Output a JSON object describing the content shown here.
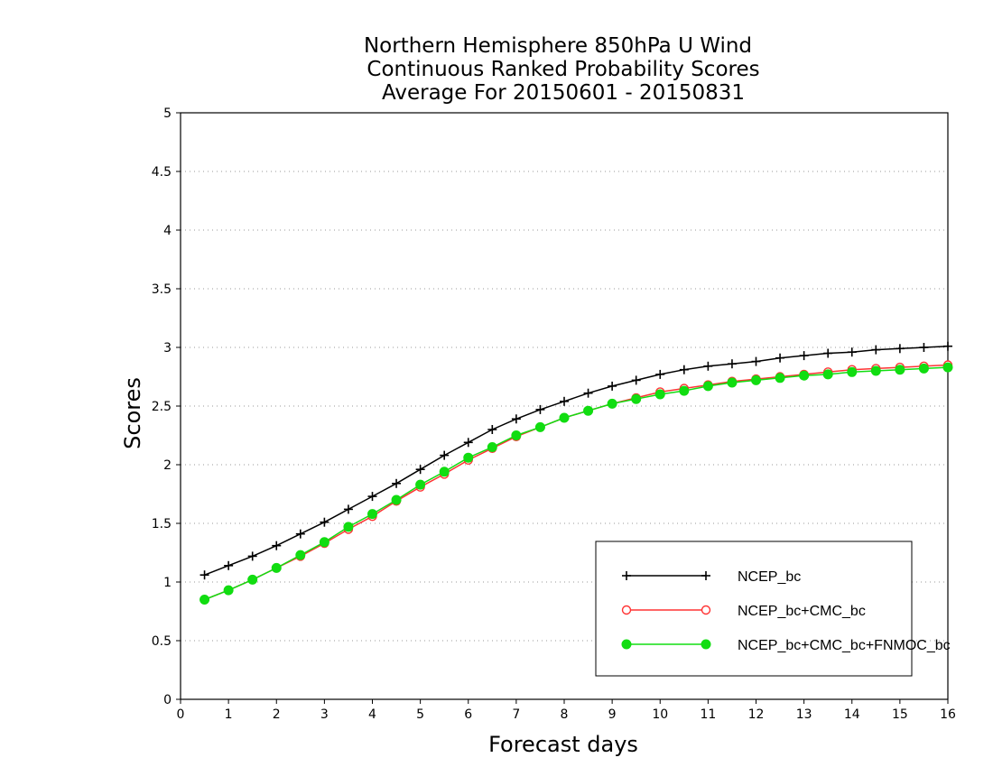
{
  "chart_data": {
    "type": "line",
    "title_lines": [
      "Northern Hemisphere 850hPa U Wind",
      "Continuous Ranked Probability Scores",
      "Average For 20150601 - 20150831"
    ],
    "xlabel": "Forecast days",
    "ylabel": "Scores",
    "xlim": [
      0,
      16
    ],
    "ylim": [
      0,
      5
    ],
    "xticks": [
      0,
      1,
      2,
      3,
      4,
      5,
      6,
      7,
      8,
      9,
      10,
      11,
      12,
      13,
      14,
      15,
      16
    ],
    "yticks": [
      0,
      0.5,
      1,
      1.5,
      2,
      2.5,
      3,
      3.5,
      4,
      4.5,
      5
    ],
    "grid": "horizontal dotted",
    "legend_position": "bottom-right",
    "x": [
      0.5,
      1,
      1.5,
      2,
      2.5,
      3,
      3.5,
      4,
      4.5,
      5,
      5.5,
      6,
      6.5,
      7,
      7.5,
      8,
      8.5,
      9,
      9.5,
      10,
      10.5,
      11,
      11.5,
      12,
      12.5,
      13,
      13.5,
      14,
      14.5,
      15,
      15.5,
      16
    ],
    "series": [
      {
        "name": "NCEP_bc",
        "color": "#000000",
        "marker": "plus",
        "values": [
          1.06,
          1.14,
          1.22,
          1.31,
          1.41,
          1.51,
          1.62,
          1.73,
          1.84,
          1.96,
          2.08,
          2.19,
          2.3,
          2.39,
          2.47,
          2.54,
          2.61,
          2.67,
          2.72,
          2.77,
          2.81,
          2.84,
          2.86,
          2.88,
          2.91,
          2.93,
          2.95,
          2.96,
          2.98,
          2.99,
          3.0,
          3.01
        ]
      },
      {
        "name": "NCEP_bc+CMC_bc",
        "color": "#ff3333",
        "marker": "open-circle",
        "values": [
          0.85,
          0.93,
          1.02,
          1.12,
          1.22,
          1.33,
          1.45,
          1.56,
          1.69,
          1.81,
          1.92,
          2.04,
          2.14,
          2.24,
          2.32,
          2.4,
          2.46,
          2.52,
          2.57,
          2.62,
          2.65,
          2.68,
          2.71,
          2.73,
          2.75,
          2.77,
          2.79,
          2.81,
          2.82,
          2.83,
          2.84,
          2.85
        ]
      },
      {
        "name": "NCEP_bc+CMC_bc+FNMOC_bc",
        "color": "#11dd11",
        "marker": "filled-circle",
        "values": [
          0.85,
          0.93,
          1.02,
          1.12,
          1.23,
          1.34,
          1.47,
          1.58,
          1.7,
          1.83,
          1.94,
          2.06,
          2.15,
          2.25,
          2.32,
          2.4,
          2.46,
          2.52,
          2.56,
          2.6,
          2.63,
          2.67,
          2.7,
          2.72,
          2.74,
          2.76,
          2.77,
          2.79,
          2.8,
          2.81,
          2.82,
          2.83
        ]
      }
    ]
  }
}
